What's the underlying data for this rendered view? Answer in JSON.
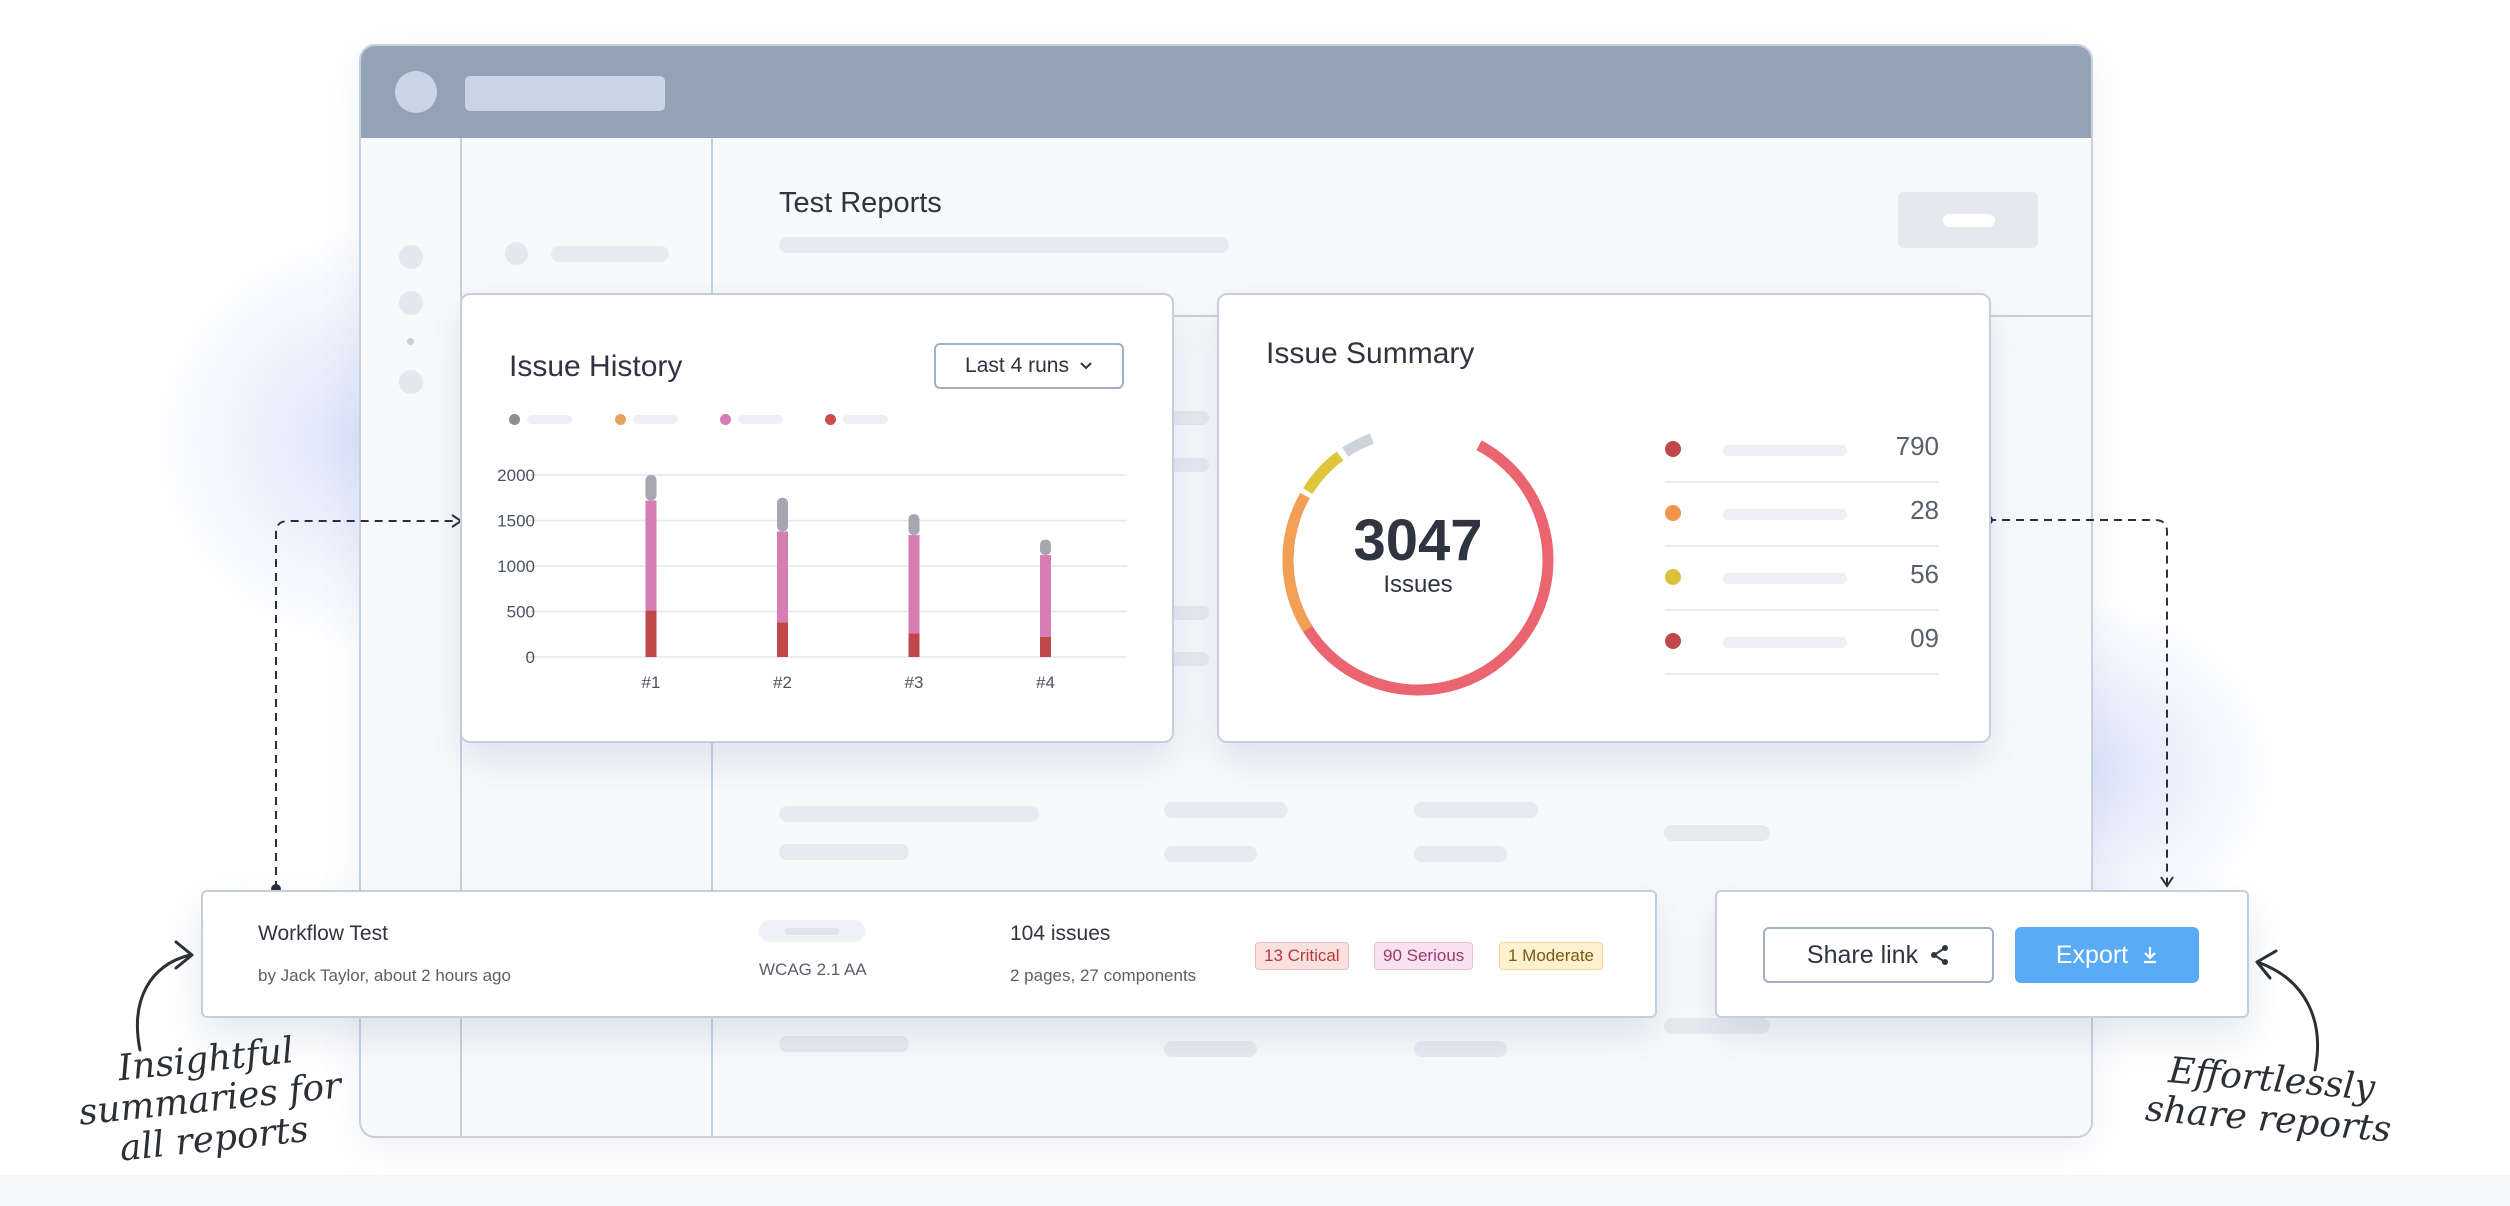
{
  "page": {
    "title": "Test Reports"
  },
  "issue_history": {
    "title": "Issue History",
    "dropdown": "Last 4 runs",
    "legend_colors": [
      "#8e8e93",
      "#e9a35c",
      "#d57ab6",
      "#cf4b4b"
    ]
  },
  "chart_data": {
    "type": "bar",
    "stacked": true,
    "categories": [
      "#1",
      "#2",
      "#3",
      "#4"
    ],
    "ylim": [
      0,
      2000
    ],
    "yticks": [
      0,
      500,
      1000,
      1500,
      2000
    ],
    "grid": true,
    "series": [
      {
        "color": "#c0474a",
        "values": [
          510,
          380,
          260,
          220
        ]
      },
      {
        "color": "#d67db3",
        "values": [
          1210,
          1000,
          1080,
          900
        ]
      },
      {
        "color": "#a5a7b1",
        "values": [
          280,
          370,
          230,
          170
        ]
      }
    ]
  },
  "issue_summary": {
    "title": "Issue Summary",
    "total": "3047",
    "total_label": "Issues",
    "rows": [
      {
        "color": "#c0474a",
        "value": "790"
      },
      {
        "color": "#f0954a",
        "value": "28"
      },
      {
        "color": "#d9c23a",
        "value": "56"
      },
      {
        "color": "#c0474a",
        "value": "09"
      }
    ]
  },
  "report_row": {
    "name": "Workflow Test",
    "author": "by Jack Taylor, about 2 hours ago",
    "standard": "WCAG 2.1 AA",
    "issues": "104 issues",
    "scope": "2 pages, 27 components",
    "badges": {
      "critical": "13 Critical",
      "serious": "90 Serious",
      "moderate": "1 Moderate"
    }
  },
  "actions": {
    "share": "Share link",
    "export": "Export"
  },
  "annotations": {
    "left_line1": "Insightful",
    "left_line2": "summaries for",
    "left_line3": "all reports",
    "right_line1": "Effortlessly",
    "right_line2": "share reports"
  },
  "colors": {
    "accent": "#5aabf5",
    "titlebar": "#95a2b5",
    "critical_bg": "#fbe0e0",
    "serious_bg": "#f9e2ef",
    "moderate_bg": "#fdf1cf"
  }
}
